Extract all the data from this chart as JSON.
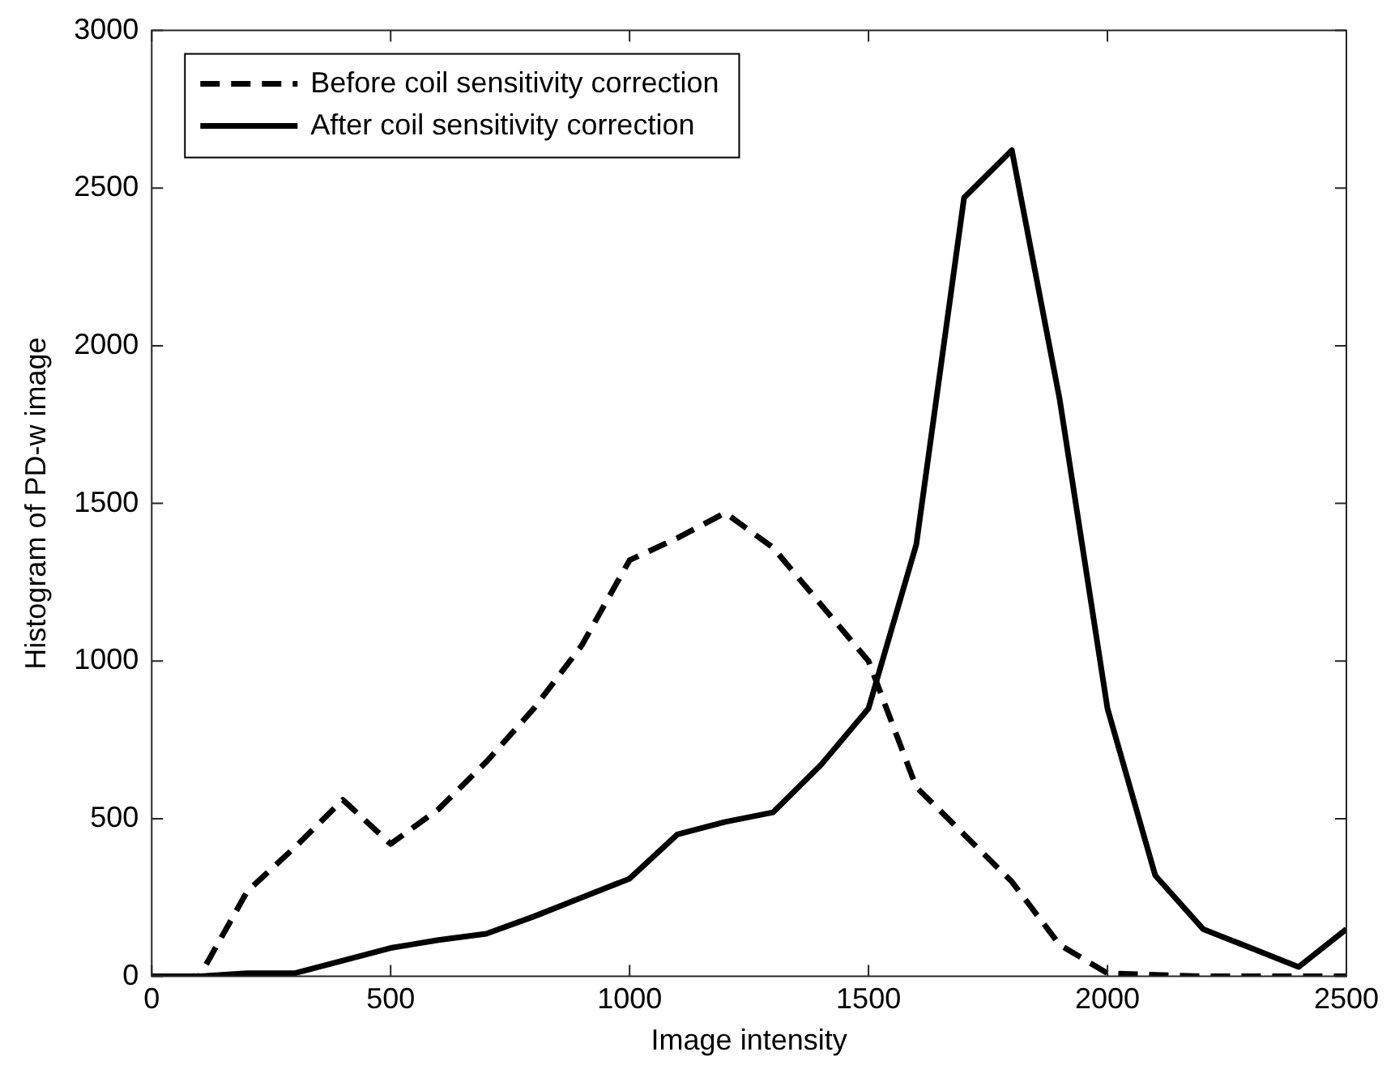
{
  "chart_data": {
    "type": "line",
    "xlabel": "Image intensity",
    "ylabel": "Histogram of PD-w image",
    "xlim": [
      0,
      2500
    ],
    "xticks": [
      0,
      500,
      1000,
      1500,
      2000,
      2500
    ],
    "ylim": [
      0,
      3000
    ],
    "yticks": [
      0,
      500,
      1000,
      1500,
      2000,
      2500,
      3000
    ],
    "x": [
      0,
      100,
      200,
      300,
      400,
      500,
      600,
      700,
      800,
      900,
      1000,
      1100,
      1200,
      1300,
      1400,
      1500,
      1600,
      1700,
      1800,
      1900,
      2000,
      2100,
      2200,
      2300,
      2400,
      2500
    ],
    "series": [
      {
        "name": "Before coil sensitivity correction",
        "color": "#000000",
        "line_style": "dashed",
        "values": [
          0,
          0,
          270,
          410,
          560,
          420,
          530,
          680,
          850,
          1050,
          1320,
          1390,
          1470,
          1360,
          1180,
          1000,
          600,
          450,
          300,
          100,
          10,
          5,
          0,
          0,
          0,
          0
        ]
      },
      {
        "name": "After coil sensitivity correction",
        "color": "#000000",
        "line_style": "solid",
        "values": [
          0,
          0,
          10,
          10,
          50,
          90,
          115,
          135,
          190,
          250,
          310,
          450,
          490,
          520,
          670,
          850,
          1370,
          2470,
          2620,
          1830,
          850,
          320,
          150,
          90,
          30,
          150
        ]
      }
    ],
    "legend": "top left",
    "grid": false,
    "marker": "none"
  }
}
